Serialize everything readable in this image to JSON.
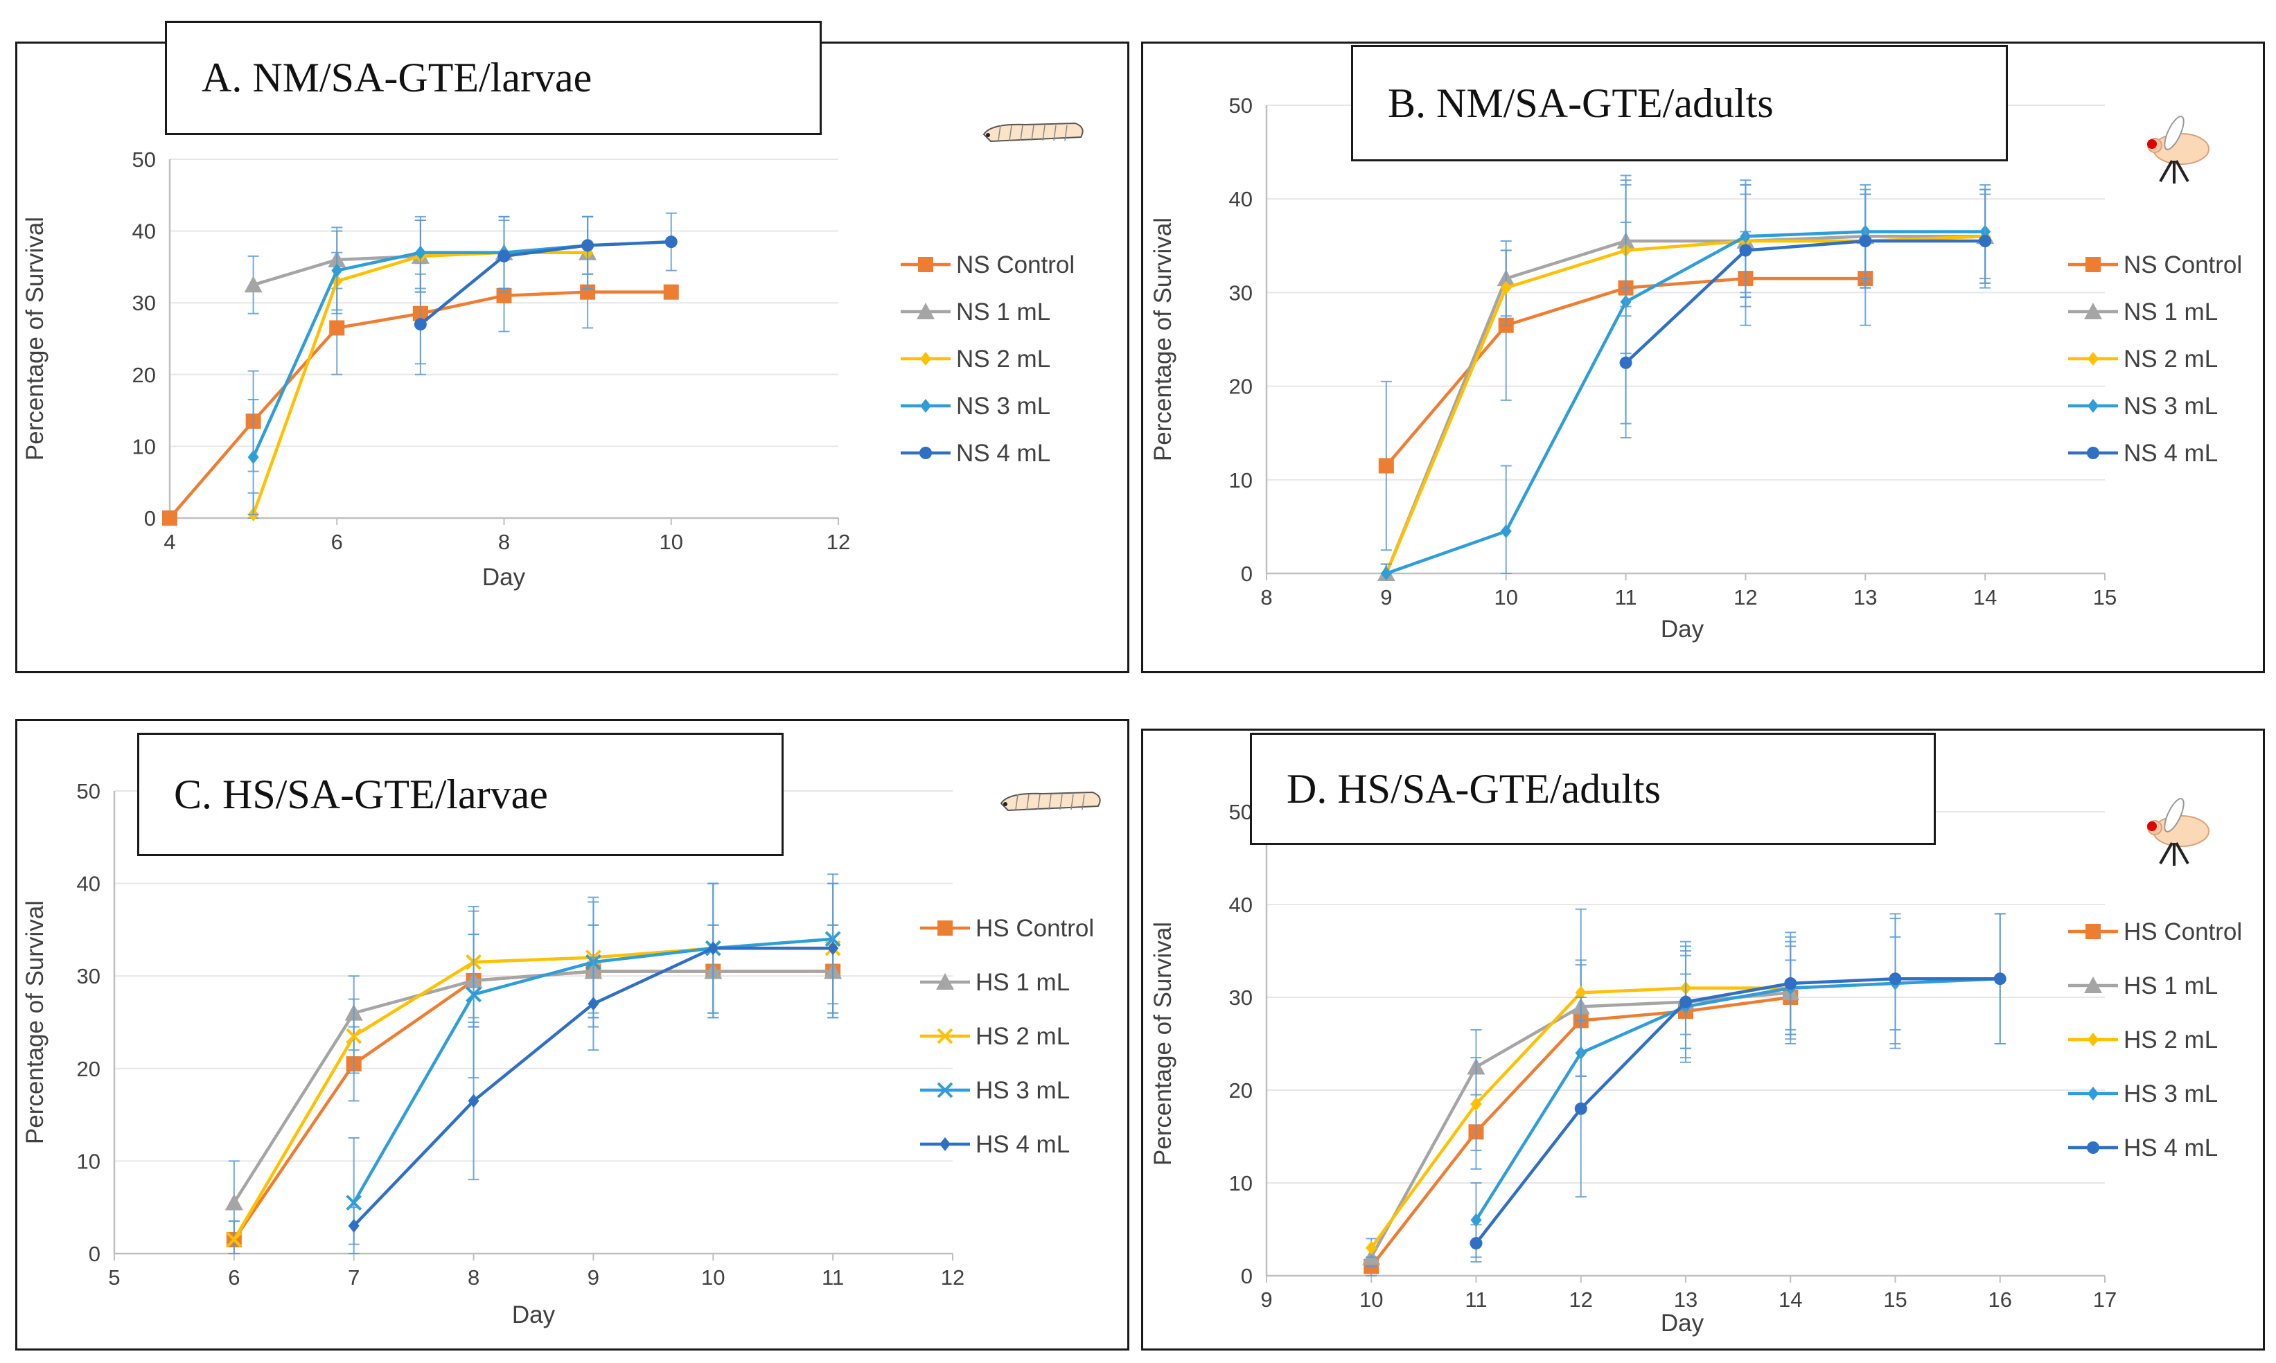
{
  "chart_data": [
    {
      "panel": "A",
      "type": "line",
      "title": "A. NM/SA-GTE/larvae",
      "icon": "larva-icon",
      "xlabel": "Day",
      "ylabel": "Percentage of Survival",
      "xlim": [
        4,
        12
      ],
      "xticks": [
        4,
        6,
        8,
        10,
        12
      ],
      "ylim": [
        0,
        50
      ],
      "yticks": [
        0,
        10,
        20,
        30,
        40,
        50
      ],
      "series": [
        {
          "name": "NS Control",
          "color": "#ED7D31",
          "marker": "square",
          "x": [
            4,
            5,
            6,
            7,
            8,
            9,
            10
          ],
          "y": [
            0,
            13.5,
            26.5,
            28.5,
            31,
            31.5,
            31.5
          ],
          "err": [
            0,
            7,
            6.5,
            7,
            5,
            5,
            0
          ]
        },
        {
          "name": "NS 1 mL",
          "color": "#A5A5A5",
          "marker": "triangle",
          "x": [
            5,
            6,
            7,
            8,
            9
          ],
          "y": [
            32.5,
            36,
            36.5,
            37,
            37
          ],
          "err": [
            4,
            4,
            5,
            5,
            5
          ]
        },
        {
          "name": "NS 2 mL",
          "color": "#FFC000",
          "marker": "diamond",
          "x": [
            5,
            6,
            7,
            8,
            9
          ],
          "y": [
            0.5,
            33,
            36.5,
            37,
            37
          ],
          "err": [
            3,
            4,
            5,
            5,
            5
          ]
        },
        {
          "name": "NS 3 mL",
          "color": "#2E9DD8",
          "marker": "diamond",
          "x": [
            5,
            6,
            7,
            8,
            9
          ],
          "y": [
            8.5,
            34.5,
            37,
            37,
            38
          ],
          "err": [
            8,
            6,
            5,
            5,
            4
          ]
        },
        {
          "name": "NS 4 mL",
          "color": "#2F6FC4",
          "marker": "circle",
          "x": [
            7,
            8,
            9,
            10
          ],
          "y": [
            27,
            36.5,
            38,
            38.5
          ],
          "err": [
            7,
            5,
            4,
            4
          ]
        }
      ]
    },
    {
      "panel": "B",
      "type": "line",
      "title": "B. NM/SA-GTE/adults",
      "icon": "fly-icon",
      "xlabel": "Day",
      "ylabel": "Percentage of Survival",
      "xlim": [
        8,
        15
      ],
      "xticks": [
        8,
        9,
        10,
        11,
        12,
        13,
        14,
        15
      ],
      "ylim": [
        0,
        50
      ],
      "yticks": [
        0,
        10,
        20,
        30,
        40,
        50
      ],
      "series": [
        {
          "name": "NS Control",
          "color": "#ED7D31",
          "marker": "square",
          "x": [
            9,
            10,
            11,
            12,
            13
          ],
          "y": [
            11.5,
            26.5,
            30.5,
            31.5,
            31.5
          ],
          "err": [
            9,
            8,
            7,
            5,
            5
          ]
        },
        {
          "name": "NS 1 mL",
          "color": "#A5A5A5",
          "marker": "triangle",
          "x": [
            9,
            10,
            11,
            12,
            13,
            14
          ],
          "y": [
            0,
            31.5,
            35.5,
            35.5,
            36,
            36
          ],
          "err": [
            1,
            4,
            7,
            6,
            5,
            5
          ]
        },
        {
          "name": "NS 2 mL",
          "color": "#FFC000",
          "marker": "diamond",
          "x": [
            9,
            10,
            11,
            12,
            13,
            14
          ],
          "y": [
            0,
            30.5,
            34.5,
            35.5,
            35.5,
            36
          ],
          "err": [
            1,
            4,
            7,
            6,
            5,
            5
          ]
        },
        {
          "name": "NS 3 mL",
          "color": "#2E9DD8",
          "marker": "diamond",
          "x": [
            9,
            10,
            11,
            12,
            13,
            14
          ],
          "y": [
            0,
            4.5,
            29,
            36,
            36.5,
            36.5
          ],
          "err": [
            1,
            7,
            13,
            6,
            5,
            5
          ]
        },
        {
          "name": "NS 4 mL",
          "color": "#2F6FC4",
          "marker": "circle",
          "x": [
            11,
            12,
            13,
            14
          ],
          "y": [
            22.5,
            34.5,
            35.5,
            35.5
          ],
          "err": [
            8,
            6,
            5,
            5
          ]
        }
      ]
    },
    {
      "panel": "C",
      "type": "line",
      "title": "C. HS/SA-GTE/larvae",
      "icon": "larva-icon",
      "xlabel": "Day",
      "ylabel": "Percentage of Survival",
      "xlim": [
        5,
        12
      ],
      "xticks": [
        5,
        6,
        7,
        8,
        9,
        10,
        11,
        12
      ],
      "ylim": [
        0,
        50
      ],
      "yticks": [
        0,
        10,
        20,
        30,
        40,
        50
      ],
      "series": [
        {
          "name": "HS Control",
          "color": "#ED7D31",
          "marker": "square",
          "x": [
            6,
            7,
            8,
            9,
            10,
            11
          ],
          "y": [
            1.5,
            20.5,
            29.5,
            30.5,
            30.5,
            30.5
          ],
          "err": [
            2,
            4,
            5,
            5,
            5,
            5
          ]
        },
        {
          "name": "HS 1 mL",
          "color": "#A5A5A5",
          "marker": "triangle",
          "x": [
            6,
            7,
            8,
            9,
            10,
            11
          ],
          "y": [
            5.5,
            26,
            29.5,
            30.5,
            30.5,
            30.5
          ],
          "err": [
            4.5,
            4,
            5,
            5,
            5,
            5
          ]
        },
        {
          "name": "HS 2 mL",
          "color": "#FFC000",
          "marker": "x",
          "x": [
            6,
            7,
            8,
            9,
            10,
            11
          ],
          "y": [
            1.5,
            23.5,
            31.5,
            32,
            33,
            33
          ],
          "err": [
            2,
            4,
            6,
            6,
            7,
            7
          ]
        },
        {
          "name": "HS 3 mL",
          "color": "#2E9DD8",
          "marker": "x",
          "x": [
            7,
            8,
            9,
            10,
            11
          ],
          "y": [
            5.5,
            28,
            31.5,
            33,
            34
          ],
          "err": [
            7,
            9,
            7,
            7,
            7
          ]
        },
        {
          "name": "HS 4 mL",
          "color": "#2F6FC4",
          "marker": "diamond",
          "x": [
            7,
            8,
            9,
            10,
            11
          ],
          "y": [
            3,
            16.5,
            27,
            33,
            33
          ],
          "err": [
            2,
            8.5,
            5,
            7,
            7
          ]
        }
      ]
    },
    {
      "panel": "D",
      "type": "line",
      "title": "D. HS/SA-GTE/adults",
      "icon": "fly-icon",
      "xlabel": "Day",
      "ylabel": "Percentage of Survival",
      "xlim": [
        9,
        17
      ],
      "xticks": [
        9,
        10,
        11,
        12,
        13,
        14,
        15,
        16,
        17
      ],
      "ylim": [
        0,
        50
      ],
      "yticks": [
        0,
        10,
        20,
        30,
        40,
        50
      ],
      "series": [
        {
          "name": "HS Control",
          "color": "#ED7D31",
          "marker": "square",
          "x": [
            10,
            11,
            12,
            13,
            14
          ],
          "y": [
            1,
            15.5,
            27.5,
            28.5,
            30
          ],
          "err": [
            1,
            4,
            6,
            4,
            4
          ]
        },
        {
          "name": "HS 1 mL",
          "color": "#A5A5A5",
          "marker": "triangle",
          "x": [
            10,
            11,
            12,
            13,
            14
          ],
          "y": [
            2,
            22.5,
            29,
            29.5,
            30.5
          ],
          "err": [
            1,
            4,
            5,
            5,
            5
          ]
        },
        {
          "name": "HS 2 mL",
          "color": "#FFC000",
          "marker": "diamond",
          "x": [
            10,
            11,
            12,
            13,
            14,
            15
          ],
          "y": [
            3,
            18.5,
            30.5,
            31,
            31,
            31.5
          ],
          "err": [
            1,
            5,
            9,
            5,
            5,
            5
          ]
        },
        {
          "name": "HS 3 mL",
          "color": "#2E9DD8",
          "marker": "diamond",
          "x": [
            11,
            12,
            13,
            14,
            15,
            16
          ],
          "y": [
            6,
            24,
            29,
            31,
            31.5,
            32
          ],
          "err": [
            4,
            6,
            6,
            6,
            7,
            7
          ]
        },
        {
          "name": "HS 4 mL",
          "color": "#2F6FC4",
          "marker": "circle",
          "x": [
            11,
            12,
            13,
            14,
            15,
            16
          ],
          "y": [
            3.5,
            18,
            29.5,
            31.5,
            32,
            32
          ],
          "err": [
            2,
            9.5,
            6,
            5,
            7,
            7
          ]
        }
      ]
    }
  ]
}
